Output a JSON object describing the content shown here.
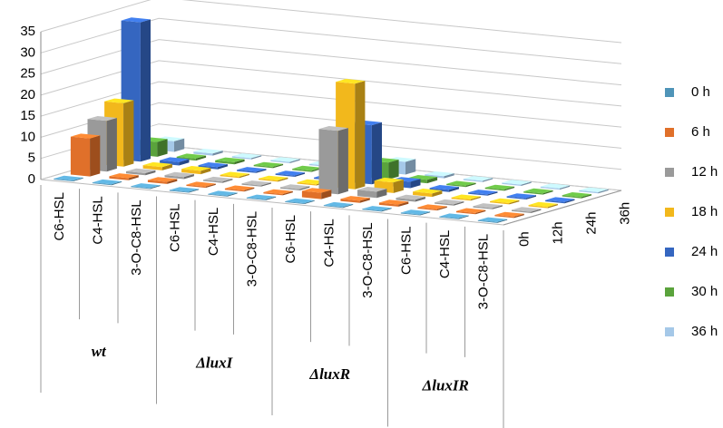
{
  "chart_data": {
    "type": "bar3d",
    "categories": [
      "C6-HSL",
      "C4-HSL",
      "3-O-C8-HSL",
      "C6-HSL",
      "C4-HSL",
      "3-O-C8-HSL",
      "C6-HSL",
      "C4-HSL",
      "3-O-C8-HSL",
      "C6-HSL",
      "C4-HSL",
      "3-O-C8-HSL"
    ],
    "groups": [
      "wt",
      "ΔluxI",
      "ΔluxR",
      "ΔluxIR"
    ],
    "depth_labels": [
      "0h",
      "12h",
      "24h",
      "36h"
    ],
    "ylim": [
      0,
      35
    ],
    "yticks": [
      0,
      5,
      10,
      15,
      20,
      25,
      30,
      35
    ],
    "grid": true,
    "series": [
      {
        "name": "0 h",
        "color": "#4f94b8",
        "values": [
          0.2,
          0.2,
          0.2,
          0.2,
          0.2,
          0.2,
          0.2,
          0.2,
          0.2,
          0.2,
          0.2,
          0.2
        ]
      },
      {
        "name": "6 h",
        "color": "#e0702a",
        "values": [
          9,
          0.5,
          0.5,
          0.3,
          0.3,
          0.3,
          1.5,
          0.5,
          0.5,
          0.3,
          0.3,
          0.3
        ]
      },
      {
        "name": "12 h",
        "color": "#9a9a9a",
        "values": [
          12,
          0.5,
          0.5,
          0.3,
          0.3,
          0.3,
          15,
          1.5,
          0.5,
          0.3,
          0.3,
          0.3
        ]
      },
      {
        "name": "18 h",
        "color": "#f2b81c",
        "values": [
          15,
          0.8,
          0.8,
          0.3,
          0.3,
          0.3,
          25,
          2.5,
          0.8,
          0.3,
          0.3,
          0.3
        ]
      },
      {
        "name": "24 h",
        "color": "#3566c0",
        "values": [
          33,
          0.8,
          0.5,
          0.3,
          0.3,
          0.3,
          14,
          1.5,
          0.5,
          0.3,
          0.3,
          0.3
        ]
      },
      {
        "name": "30 h",
        "color": "#5aa33c",
        "values": [
          3.5,
          0.5,
          0.5,
          0.3,
          0.3,
          0.3,
          4,
          0.8,
          0.3,
          0.3,
          0.3,
          0.3
        ]
      },
      {
        "name": "36 h",
        "color": "#a5c8e8",
        "values": [
          2.5,
          0.5,
          0.3,
          0.3,
          0.3,
          0.3,
          3,
          0.5,
          0.3,
          0.3,
          0.3,
          0.3
        ]
      }
    ]
  }
}
